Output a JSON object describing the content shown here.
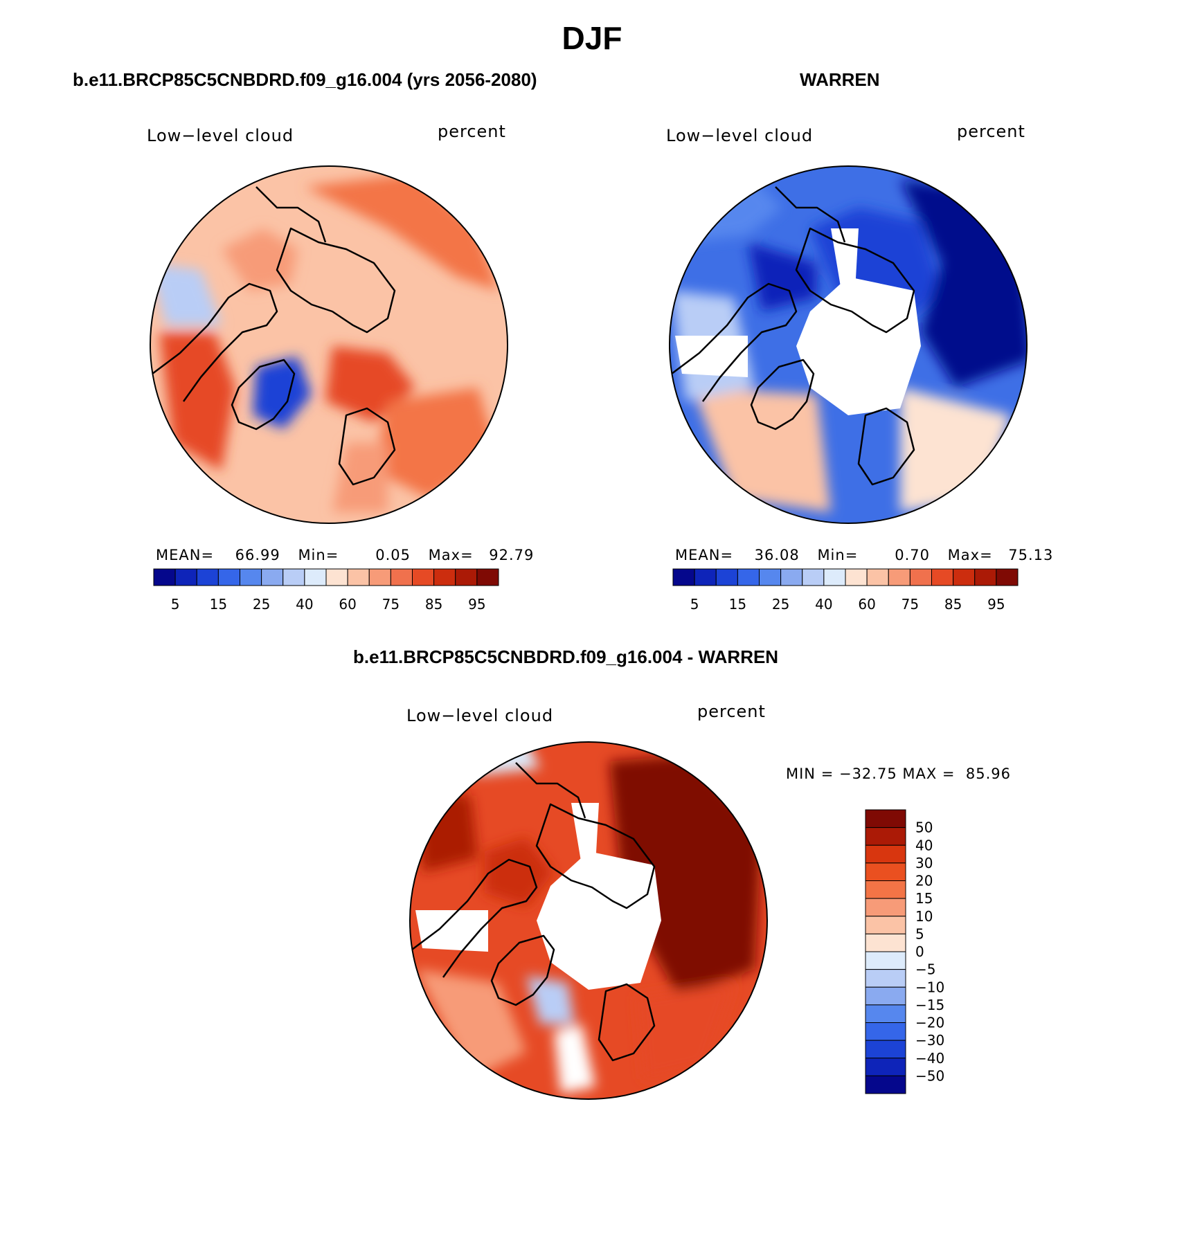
{
  "title": "DJF",
  "panels": [
    {
      "title": "b.e11.BRCP85C5CNBDRD.f09_g16.004 (yrs 2056-2080)",
      "variable": "Low−level cloud",
      "units": "percent",
      "stats": {
        "mean_label": "MEAN=",
        "mean": "66.99",
        "min_label": "Min=",
        "min": "0.05",
        "max_label": "Max=",
        "max": "92.79"
      }
    },
    {
      "title": "WARREN",
      "variable": "Low−level cloud",
      "units": "percent",
      "stats": {
        "mean_label": "MEAN=",
        "mean": "36.08",
        "min_label": "Min=",
        "min": "0.70",
        "max_label": "Max=",
        "max": "75.13"
      }
    },
    {
      "title": "b.e11.BRCP85C5CNBDRD.f09_g16.004 - WARREN",
      "variable": "Low−level cloud",
      "units": "percent",
      "minmax": "MIN = −32.75 MAX =  85.96"
    }
  ],
  "colorbar_abs": {
    "labels": [
      "5",
      "15",
      "25",
      "40",
      "60",
      "75",
      "85",
      "95"
    ],
    "colors": [
      "#05078c",
      "#0e24b9",
      "#1c43d6",
      "#3566e9",
      "#5687ee",
      "#8aaaf0",
      "#b9cdf6",
      "#ddebfb",
      "#fde3d2",
      "#fbc3a6",
      "#f79b78",
      "#f0714d",
      "#e64a25",
      "#cc2d0e",
      "#ab1a06",
      "#7f0a04"
    ]
  },
  "colorbar_diff": {
    "labels": [
      "50",
      "40",
      "30",
      "20",
      "15",
      "10",
      "5",
      "0",
      "−5",
      "−10",
      "−15",
      "−20",
      "−30",
      "−40",
      "−50"
    ],
    "colors": [
      "#7f0a04",
      "#ab1a06",
      "#d8360f",
      "#ea5020",
      "#f37446",
      "#f79b78",
      "#fbc3a6",
      "#fde3d2",
      "#ddebfb",
      "#b9cdf6",
      "#8aaaf0",
      "#5687ee",
      "#3566e9",
      "#1c43d6",
      "#0e24b9",
      "#05078c"
    ]
  },
  "map_fields": {
    "base_colors": [
      "#fbc3a6",
      "#3e6fe6",
      "#e64a25"
    ],
    "patch_colors": [
      [
        "#f37446",
        "#e64a25",
        "#f79b78",
        "#b9cdf6",
        "#1c43d6",
        "#e64a25",
        "#f37446",
        "#f79b78"
      ],
      [
        "#1c43d6",
        "#05078c",
        "#5687ee",
        "#fde3d2",
        "#fbc3a6",
        "#b9cdf6",
        "#0e24b9",
        "#ffffff"
      ],
      [
        "#7f0a04",
        "#cc2d0e",
        "#f79b78",
        "#ddebfb",
        "#ffffff",
        "#ab1a06",
        "#b9cdf6",
        "#e64a25"
      ]
    ]
  }
}
